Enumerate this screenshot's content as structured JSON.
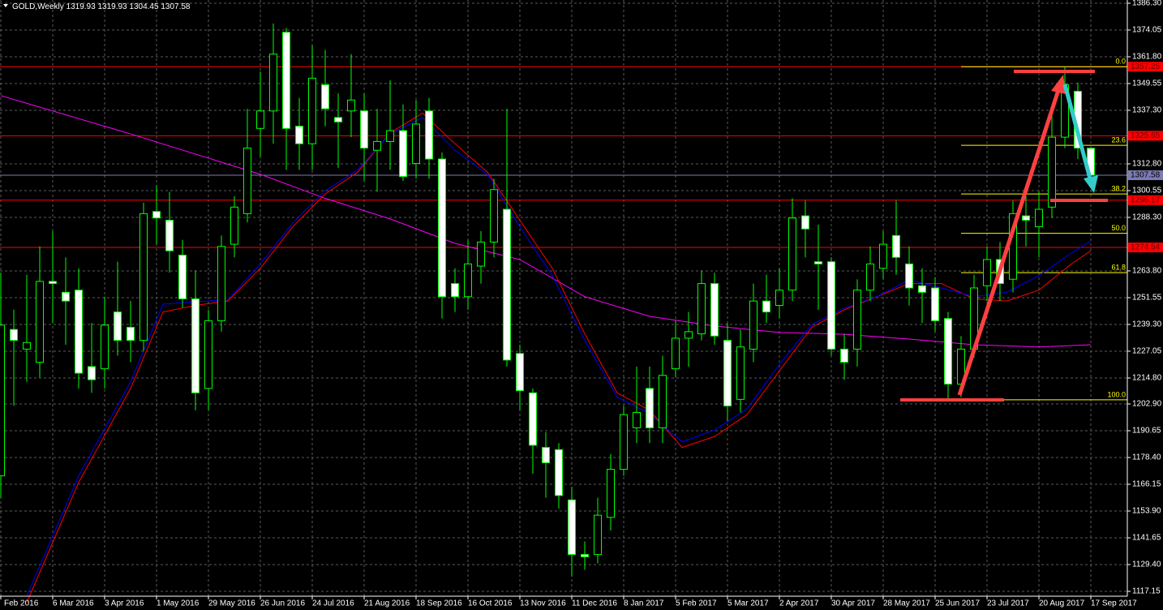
{
  "chart_data": {
    "type": "candlestick",
    "title": "GOLD,Weekly",
    "categories": [
      "Feb 2016",
      null,
      null,
      null,
      "6 Mar 2016",
      null,
      null,
      null,
      "3 Apr 2016",
      null,
      null,
      null,
      "1 May 2016",
      null,
      null,
      null,
      "29 May 2016",
      null,
      null,
      null,
      "26 Jun 2016",
      null,
      null,
      null,
      "24 Jul 2016",
      null,
      null,
      null,
      "21 Aug 2016",
      null,
      null,
      null,
      "18 Sep 2016",
      null,
      null,
      null,
      "16 Oct 2016",
      null,
      null,
      null,
      "13 Nov 2016",
      null,
      null,
      null,
      "11 Dec 2016",
      null,
      null,
      null,
      "8 Jan 2017",
      null,
      null,
      null,
      "5 Feb 2017",
      null,
      null,
      null,
      "5 Mar 2017",
      null,
      null,
      null,
      "2 Apr 2017",
      null,
      null,
      null,
      "30 Apr 2017",
      null,
      null,
      null,
      "28 May 2017",
      null,
      null,
      null,
      "25 Jun 2017",
      null,
      null,
      null,
      "23 Jul 2017",
      null,
      null,
      null,
      "20 Aug 2017",
      null,
      null,
      null,
      "17 Sep 2017"
    ],
    "open": [
      1170,
      1237,
      1228,
      1222,
      1259,
      1254,
      1255,
      1220,
      1219,
      1245,
      1238,
      1232,
      1291,
      1287,
      1271,
      1251,
      1210,
      1241,
      1276,
      1290,
      1329,
      1337,
      1373,
      1330,
      1322,
      1349,
      1334,
      1337,
      1337,
      1319,
      1323,
      1328,
      1313,
      1337,
      1315,
      1258,
      1252,
      1266,
      1277,
      1292,
      1226,
      1208,
      1183,
      1182,
      1159,
      1134,
      1134,
      1151,
      1173,
      1192,
      1210,
      1192,
      1219,
      1233,
      1235,
      1258,
      1232,
      1205,
      1228,
      1250,
      1248,
      1255,
      1289,
      1268,
      1268,
      1228,
      1228,
      1255,
      1265,
      1280,
      1267,
      1257,
      1256,
      1242,
      1212,
      1228,
      1257,
      1269,
      1260,
      1289,
      1284,
      1293,
      1325,
      1346,
      1319.93
    ],
    "high": [
      1263,
      1246,
      1262,
      1275,
      1282,
      1270,
      1265,
      1240,
      1252,
      1268,
      1250,
      1295,
      1303,
      1300,
      1278,
      1264,
      1246,
      1280,
      1298,
      1338,
      1355,
      1377,
      1375,
      1343,
      1367,
      1365,
      1345,
      1363,
      1345,
      1338,
      1351,
      1340,
      1342,
      1343,
      1318,
      1265,
      1278,
      1282,
      1306,
      1338,
      1230,
      1210,
      1190,
      1185,
      1165,
      1140,
      1160,
      1180,
      1202,
      1220,
      1220,
      1225,
      1241,
      1245,
      1264,
      1263,
      1240,
      1237,
      1258,
      1262,
      1265,
      1297,
      1296,
      1285,
      1270,
      1235,
      1260,
      1275,
      1282,
      1296,
      1275,
      1265,
      1261,
      1245,
      1234,
      1262,
      1275,
      1277,
      1296,
      1298,
      1300,
      1335,
      1357.25,
      1350,
      1319.93
    ],
    "low": [
      1160,
      1202,
      1213,
      1215,
      1240,
      1230,
      1210,
      1208,
      1210,
      1225,
      1222,
      1227,
      1276,
      1263,
      1247,
      1200,
      1200,
      1236,
      1270,
      1286,
      1316,
      1322,
      1310,
      1310,
      1310,
      1330,
      1311,
      1325,
      1305,
      1300,
      1310,
      1305,
      1306,
      1306,
      1242,
      1245,
      1246,
      1258,
      1270,
      1220,
      1200,
      1171,
      1160,
      1155,
      1124,
      1127,
      1130,
      1145,
      1170,
      1185,
      1185,
      1185,
      1215,
      1220,
      1232,
      1230,
      1195,
      1199,
      1222,
      1240,
      1242,
      1250,
      1270,
      1246,
      1225,
      1214,
      1220,
      1250,
      1260,
      1262,
      1248,
      1240,
      1236,
      1205,
      1206,
      1224,
      1250,
      1250,
      1254,
      1275,
      1270,
      1288,
      1320,
      1315,
      1304.45
    ],
    "close": [
      1239,
      1232,
      1231,
      1259,
      1258,
      1250,
      1217,
      1214,
      1239,
      1232,
      1232,
      1290,
      1288,
      1273,
      1251,
      1208,
      1241,
      1275,
      1293,
      1320,
      1337,
      1363,
      1329,
      1322,
      1352,
      1338,
      1332,
      1342,
      1320,
      1323,
      1328,
      1307,
      1331,
      1315,
      1252,
      1252,
      1267,
      1277,
      1301,
      1223,
      1209,
      1184,
      1176,
      1161,
      1134,
      1133,
      1152,
      1173,
      1198,
      1199,
      1192,
      1216,
      1233,
      1236,
      1258,
      1234,
      1202,
      1229,
      1250,
      1245,
      1255,
      1288,
      1283,
      1267,
      1228,
      1222,
      1255,
      1267,
      1276,
      1270,
      1256,
      1254,
      1241,
      1212,
      1228,
      1256,
      1269,
      1258,
      1290,
      1287,
      1292,
      1325,
      1349,
      1320,
      1307.58
    ],
    "up_color": "#00ff00",
    "down_color": "#ffffff",
    "ylim": [
      1114.92,
      1387.78
    ],
    "yticks": [
      {
        "value": 1386.3,
        "label": "1386.30"
      },
      1374.05,
      {
        "value": 1361.8,
        "label": "1361.80"
      },
      1349.55,
      {
        "value": 1337.3,
        "label": "1337.30"
      },
      {
        "value": 1312.8,
        "label": "1312.80"
      },
      1300.55,
      {
        "value": 1288.3,
        "label": "1288.30"
      },
      {
        "value": 1263.8,
        "label": "1263.80"
      },
      1251.55,
      {
        "value": 1239.3,
        "label": "1239.30"
      },
      1227.05,
      {
        "value": 1214.8,
        "label": "1214.80"
      },
      {
        "value": 1202.9,
        "label": "1202.90"
      },
      1190.65,
      {
        "value": 1178.4,
        "label": "1178.40"
      },
      1166.15,
      {
        "value": 1153.9,
        "label": "1153.90"
      },
      1141.65,
      {
        "value": 1129.4,
        "label": "1129.40"
      },
      1117.15
    ],
    "grid": true,
    "overlays": [
      {
        "color": "#ff00ff",
        "x": [
          0,
          10,
          20,
          25,
          30,
          35,
          40,
          45,
          50,
          55,
          60,
          65,
          70,
          75,
          80,
          84
        ],
        "values": [
          1344,
          1326.5,
          1308,
          1297,
          1287.6,
          1276.4,
          1269,
          1252,
          1243,
          1238.6,
          1235.6,
          1234.8,
          1232.6,
          1230,
          1229,
          1230
        ]
      },
      {
        "color": "#ff0000",
        "x": [
          2,
          6,
          10,
          12.5,
          15,
          17.5,
          20,
          22.5,
          25,
          27.5,
          30,
          32.5,
          35,
          37.5,
          40,
          42.5,
          45,
          47.5,
          50,
          52.5,
          55,
          57.5,
          60,
          62.5,
          65,
          67.5,
          70,
          72.5,
          75,
          77.5,
          80,
          82.5,
          84
        ],
        "values": [
          1112,
          1167,
          1210,
          1245,
          1248,
          1250,
          1265,
          1284,
          1299,
          1309,
          1327,
          1336,
          1322,
          1309,
          1287,
          1265,
          1235,
          1208,
          1200,
          1183,
          1188,
          1198,
          1218,
          1238,
          1246,
          1252,
          1258,
          1258,
          1251,
          1250,
          1255,
          1267,
          1273
        ]
      },
      {
        "color": "#0000ff",
        "x": [
          2,
          6,
          10,
          12.5,
          15,
          17.5,
          20,
          22.5,
          25,
          27.5,
          30,
          32.5,
          35,
          37.5,
          40,
          42.5,
          45,
          47.5,
          50,
          52.5,
          55,
          57.5,
          60,
          62.5,
          65,
          67.5,
          70,
          72.5,
          75,
          77.5,
          80,
          82.5,
          84
        ],
        "values": [
          1115,
          1170,
          1213,
          1248.6,
          1249.7,
          1250.5,
          1267,
          1285.7,
          1300.5,
          1310,
          1326.5,
          1334,
          1319,
          1308,
          1284,
          1261.6,
          1232,
          1206,
          1198.5,
          1185.5,
          1191,
          1200.6,
          1221,
          1239.3,
          1246.7,
          1252,
          1259.7,
          1256,
          1252,
          1254,
          1261.6,
          1272,
          1277.5
        ]
      }
    ],
    "levels": [
      {
        "value": 1357.25,
        "color": "#ff0000"
      },
      {
        "value": 1325.65,
        "color": "#ff0000"
      },
      {
        "value": 1307.58,
        "color": "#7b7bb5"
      },
      {
        "value": 1296.17,
        "color": "#ff0000"
      },
      {
        "value": 1274.54,
        "color": "#ff0000"
      }
    ],
    "fibonacci": [
      {
        "value": 1357.25,
        "label": "0.0"
      },
      {
        "value": 1321.27,
        "label": "23.6"
      },
      {
        "value": 1299.0,
        "label": "38.2"
      },
      {
        "value": 1281.0,
        "label": "50.0"
      },
      {
        "value": 1263.0,
        "label": "61.8"
      },
      {
        "value": 1204.8,
        "label": "100.0"
      }
    ],
    "fib_color": "#ffff00"
  }
}
